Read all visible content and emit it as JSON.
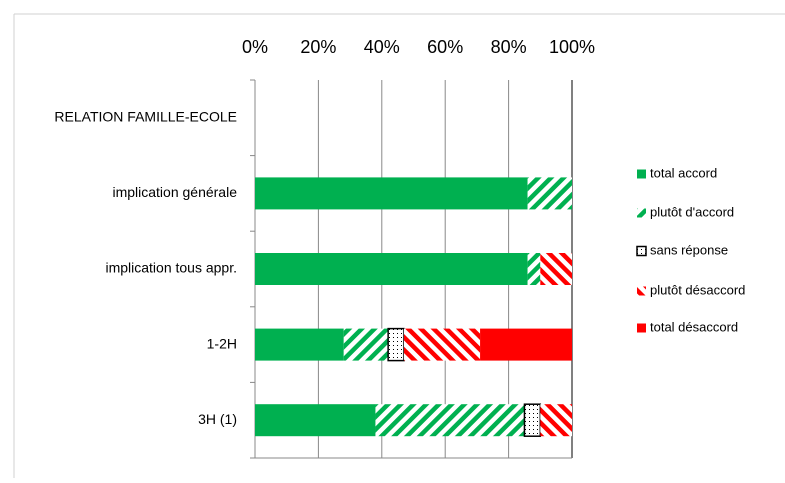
{
  "chart_data": {
    "type": "stacked-barh",
    "categories": [
      "RELATION FAMILLE-ECOLE",
      "implication générale",
      "implication tous appr.",
      "1-2H",
      "3H (1)"
    ],
    "series": [
      {
        "name": "total accord",
        "color": "#00b050",
        "pattern": "solid",
        "values": [
          null,
          86,
          86,
          28,
          38
        ]
      },
      {
        "name": "plutôt d'accord",
        "color": "#00b050",
        "pattern": "hatch-up",
        "values": [
          null,
          14,
          4,
          14,
          47
        ]
      },
      {
        "name": "sans réponse",
        "color": "#000000",
        "pattern": "dotted",
        "values": [
          null,
          null,
          null,
          5,
          5
        ]
      },
      {
        "name": "plutôt désaccord",
        "color": "#ff0000",
        "pattern": "hatch-down",
        "values": [
          null,
          null,
          10,
          24,
          10
        ]
      },
      {
        "name": "total désaccord",
        "color": "#ff0000",
        "pattern": "solid",
        "values": [
          null,
          null,
          null,
          29,
          null
        ]
      }
    ],
    "xlim": [
      0,
      100
    ],
    "xticks": [
      {
        "value": 0,
        "label": "0%"
      },
      {
        "value": 20,
        "label": "20%"
      },
      {
        "value": 40,
        "label": "40%"
      },
      {
        "value": 60,
        "label": "60%"
      },
      {
        "value": 80,
        "label": "80%"
      },
      {
        "value": 100,
        "label": "100%"
      }
    ],
    "grid": true,
    "legend": "right"
  }
}
